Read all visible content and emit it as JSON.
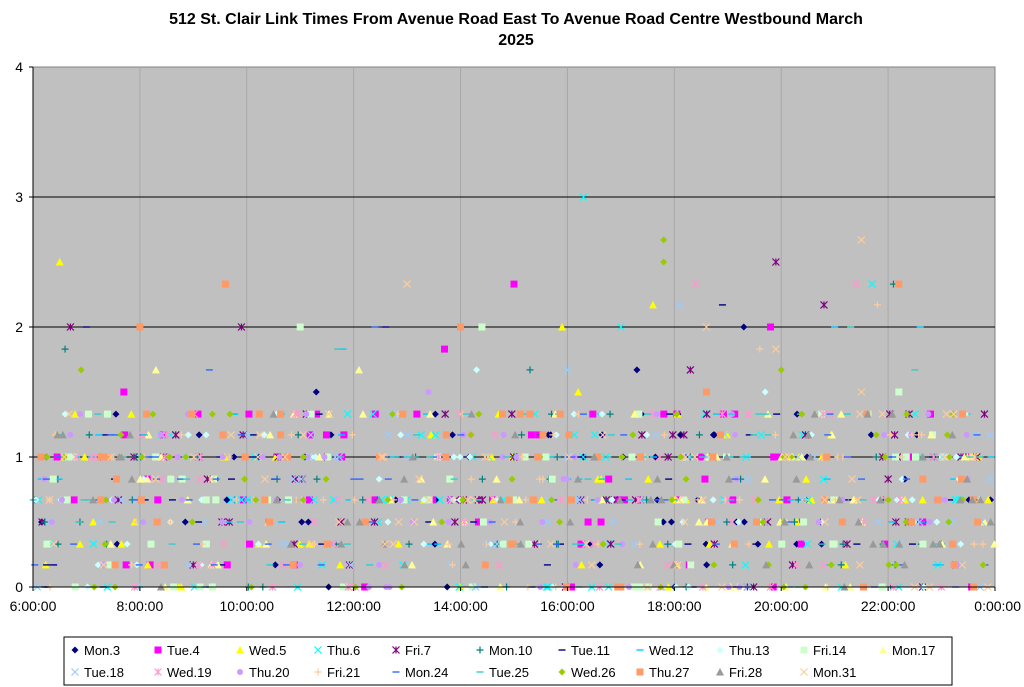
{
  "chart_data": {
    "type": "scatter",
    "title_line1": "512 St. Clair Link Times From Avenue Road East To Avenue Road Centre Westbound March",
    "title_line2": "2025",
    "xlabel": "",
    "ylabel": "",
    "xlim": [
      "6:00:00",
      "0:00:00"
    ],
    "ylim": [
      0,
      4
    ],
    "x_ticks": [
      "6:00:00",
      "8:00:00",
      "10:00:00",
      "12:00:00",
      "14:00:00",
      "16:00:00",
      "18:00:00",
      "20:00:00",
      "22:00:00",
      "0:00:00"
    ],
    "y_ticks": [
      "0",
      "1",
      "2",
      "3",
      "4"
    ],
    "grid": true,
    "plot_background": "#c0c0c0",
    "legend_position": "bottom",
    "series": [
      {
        "name": "Mon.3",
        "color": "#000080",
        "marker": "diamond",
        "outliers": [
          [
            17.3,
            1.67
          ],
          [
            19.3,
            2.0
          ],
          [
            11.3,
            1.5
          ]
        ]
      },
      {
        "name": "Tue.4",
        "color": "#ff00ff",
        "marker": "square",
        "outliers": [
          [
            15.0,
            2.33
          ],
          [
            13.7,
            1.83
          ],
          [
            19.8,
            2.0
          ],
          [
            7.7,
            1.5
          ]
        ]
      },
      {
        "name": "Wed.5",
        "color": "#ffff00",
        "marker": "triangle",
        "outliers": [
          [
            6.5,
            2.5
          ],
          [
            17.6,
            2.17
          ],
          [
            15.9,
            2.0
          ],
          [
            16.2,
            1.5
          ]
        ]
      },
      {
        "name": "Thu.6",
        "color": "#00ffff",
        "marker": "x",
        "outliers": [
          [
            16.3,
            3.0
          ],
          [
            21.7,
            2.33
          ],
          [
            17.0,
            2.0
          ]
        ]
      },
      {
        "name": "Fri.7",
        "color": "#800080",
        "marker": "star",
        "outliers": [
          [
            19.9,
            2.5
          ],
          [
            20.8,
            2.17
          ],
          [
            6.7,
            2.0
          ],
          [
            9.9,
            2.0
          ],
          [
            18.3,
            1.67
          ]
        ]
      },
      {
        "name": "Mon.10",
        "color": "#008080",
        "marker": "plus",
        "outliers": [
          [
            6.6,
            1.83
          ],
          [
            22.1,
            2.33
          ],
          [
            15.3,
            1.67
          ]
        ]
      },
      {
        "name": "Tue.11",
        "color": "#000080",
        "marker": "dash",
        "outliers": [
          [
            18.9,
            2.17
          ],
          [
            7.0,
            2.0
          ],
          [
            12.6,
            2.0
          ]
        ]
      },
      {
        "name": "Wed.12",
        "color": "#00ccff",
        "marker": "dash",
        "outliers": [
          [
            11.8,
            1.83
          ],
          [
            21.0,
            2.0
          ],
          [
            22.6,
            2.0
          ]
        ]
      },
      {
        "name": "Thu.13",
        "color": "#ccffff",
        "marker": "diamond",
        "outliers": [
          [
            19.7,
            1.5
          ],
          [
            14.3,
            1.67
          ]
        ]
      },
      {
        "name": "Fri.14",
        "color": "#ccffcc",
        "marker": "square",
        "outliers": [
          [
            11.0,
            2.0
          ],
          [
            14.4,
            2.0
          ],
          [
            22.2,
            1.5
          ]
        ]
      },
      {
        "name": "Mon.17",
        "color": "#ffff99",
        "marker": "triangle",
        "outliers": [
          [
            8.3,
            1.67
          ],
          [
            12.1,
            1.67
          ]
        ]
      },
      {
        "name": "Tue.18",
        "color": "#99ccff",
        "marker": "x",
        "outliers": [
          [
            18.1,
            2.17
          ],
          [
            16.0,
            1.67
          ]
        ]
      },
      {
        "name": "Wed.19",
        "color": "#ff99cc",
        "marker": "star",
        "outliers": [
          [
            21.4,
            2.33
          ],
          [
            18.4,
            2.33
          ]
        ]
      },
      {
        "name": "Thu.20",
        "color": "#cc99ff",
        "marker": "circle",
        "outliers": [
          [
            13.4,
            1.5
          ],
          [
            8.9,
            1.33
          ]
        ]
      },
      {
        "name": "Fri.21",
        "color": "#ffcc99",
        "marker": "plus",
        "outliers": [
          [
            21.8,
            2.17
          ],
          [
            19.6,
            1.83
          ]
        ]
      },
      {
        "name": "Mon.24",
        "color": "#3366ff",
        "marker": "dash",
        "outliers": [
          [
            12.4,
            2.0
          ],
          [
            9.3,
            1.67
          ]
        ]
      },
      {
        "name": "Tue.25",
        "color": "#33cccc",
        "marker": "dash",
        "outliers": [
          [
            21.3,
            2.0
          ],
          [
            11.7,
            1.83
          ],
          [
            22.5,
            1.67
          ]
        ]
      },
      {
        "name": "Wed.26",
        "color": "#99cc00",
        "marker": "diamond",
        "outliers": [
          [
            17.8,
            2.67
          ],
          [
            17.8,
            2.5
          ],
          [
            6.9,
            1.67
          ],
          [
            20.0,
            1.67
          ]
        ]
      },
      {
        "name": "Thu.27",
        "color": "#ff9966",
        "marker": "square",
        "outliers": [
          [
            9.6,
            2.33
          ],
          [
            8.0,
            2.0
          ],
          [
            14.0,
            2.0
          ],
          [
            22.2,
            2.33
          ],
          [
            18.6,
            1.5
          ]
        ]
      },
      {
        "name": "Fri.28",
        "color": "#999999",
        "marker": "triangle",
        "outliers": [
          [
            10.5,
            1.33
          ]
        ]
      },
      {
        "name": "Mon.31",
        "color": "#ffcc99",
        "marker": "x",
        "outliers": [
          [
            13.0,
            2.33
          ],
          [
            21.5,
            2.67
          ],
          [
            18.6,
            2.0
          ],
          [
            19.9,
            1.83
          ],
          [
            21.5,
            1.5
          ]
        ]
      }
    ]
  }
}
